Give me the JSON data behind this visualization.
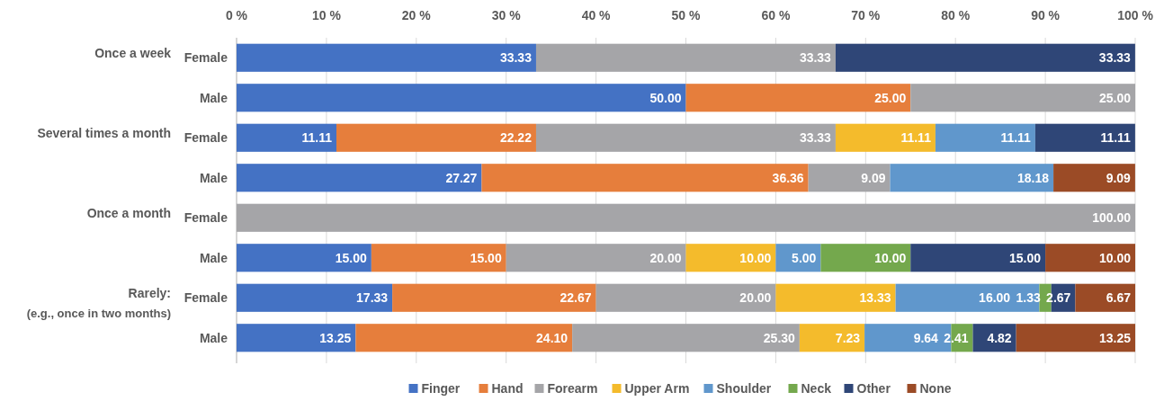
{
  "chart_data": {
    "type": "bar",
    "orientation": "horizontal",
    "stacked": true,
    "categories": [
      "Female",
      "Male",
      "Female",
      "Male",
      "Female",
      "Male",
      "Female",
      "Male"
    ],
    "annotations": [
      "Once a week",
      "Several times a month",
      "Once a month",
      "Rarely:\n(e.g., once in two months)"
    ],
    "xlim": [
      0,
      100
    ],
    "xticks": [
      {
        "value": 0,
        "label": "0 %"
      },
      {
        "value": 10,
        "label": "10 %"
      },
      {
        "value": 20,
        "label": "20 %"
      },
      {
        "value": 30,
        "label": "30 %"
      },
      {
        "value": 40,
        "label": "40 %"
      },
      {
        "value": 50,
        "label": "50 %"
      },
      {
        "value": 60,
        "label": "60 %"
      },
      {
        "value": 70,
        "label": "70 %"
      },
      {
        "value": 80,
        "label": "80 %"
      },
      {
        "value": 90,
        "label": "90 %"
      },
      {
        "value": 100,
        "label": "100 %"
      }
    ],
    "grid": "x",
    "legend": "bottom",
    "series": [
      {
        "name": "Finger",
        "color": "#4472c4",
        "values": [
          33.33,
          50,
          11.11,
          27.27,
          null,
          15,
          17.33,
          13.25
        ],
        "value_labels": [
          "33.33",
          "50.00",
          "11.11",
          "27.27",
          null,
          "15.00",
          "17.33",
          "13.25"
        ]
      },
      {
        "name": "Hand",
        "color": "#e67e3c",
        "values": [
          null,
          25,
          22.22,
          36.36,
          null,
          15,
          22.67,
          24.1
        ],
        "value_labels": [
          null,
          "25.00",
          "22.22",
          "36.36",
          null,
          "15.00",
          "22.67",
          "24.10"
        ]
      },
      {
        "name": "Forearm",
        "color": "#a5a5a8",
        "values": [
          33.33,
          25,
          33.33,
          9.09,
          100,
          20,
          20,
          25.3
        ],
        "value_labels": [
          "33.33",
          "25.00",
          "33.33",
          "9.09",
          "100.00",
          "20.00",
          "20.00",
          "25.30"
        ]
      },
      {
        "name": "Upper Arm",
        "color": "#f4bb2c",
        "values": [
          null,
          null,
          11.11,
          null,
          null,
          10,
          13.33,
          7.23
        ],
        "value_labels": [
          null,
          null,
          "11.11",
          null,
          null,
          "10.00",
          "13.33",
          "7.23"
        ]
      },
      {
        "name": "Shoulder",
        "color": "#6097cc",
        "values": [
          null,
          null,
          11.11,
          18.18,
          null,
          5,
          16,
          9.64
        ],
        "value_labels": [
          null,
          null,
          "11.11",
          "18.18",
          null,
          "5.00",
          "16.00",
          "9.64"
        ]
      },
      {
        "name": "Neck",
        "color": "#74a84d",
        "values": [
          null,
          null,
          null,
          null,
          null,
          10,
          1.33,
          2.41
        ],
        "value_labels": [
          null,
          null,
          null,
          null,
          null,
          "10.00",
          "1.33",
          "2.41"
        ]
      },
      {
        "name": "Other",
        "color": "#2f4677",
        "values": [
          33.33,
          null,
          11.11,
          null,
          null,
          15,
          2.67,
          4.82
        ],
        "value_labels": [
          "33.33",
          null,
          "11.11",
          null,
          null,
          "15.00",
          "2.67",
          "4.82"
        ]
      },
      {
        "name": "None",
        "color": "#9b4b26",
        "values": [
          null,
          null,
          null,
          9.09,
          null,
          10,
          6.67,
          13.25
        ],
        "value_labels": [
          null,
          null,
          null,
          "9.09",
          null,
          "10.00",
          "6.67",
          "13.25"
        ]
      }
    ]
  }
}
